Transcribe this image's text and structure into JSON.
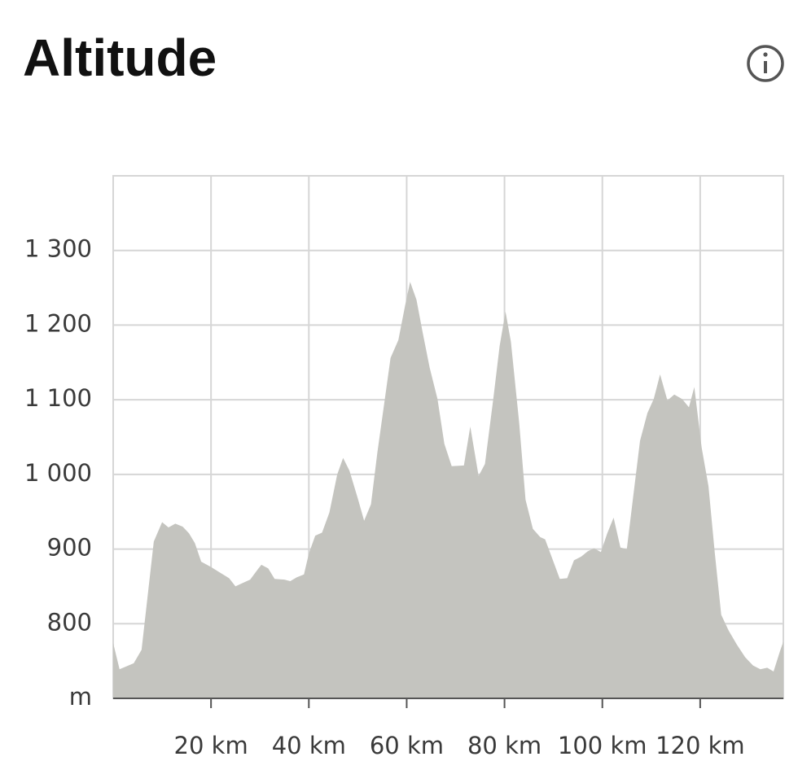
{
  "chart_data": {
    "type": "area",
    "title": "Altitude",
    "color": "#c4c4bf",
    "grid": true,
    "xlim": [
      0,
      137
    ],
    "ylim": [
      700,
      1400
    ],
    "xticks": [
      {
        "value": 20,
        "label": "20 km"
      },
      {
        "value": 40,
        "label": "40 km"
      },
      {
        "value": 60,
        "label": "60 km"
      },
      {
        "value": 80,
        "label": "80 km"
      },
      {
        "value": 100,
        "label": "100 km"
      },
      {
        "value": 120,
        "label": "120 km"
      }
    ],
    "yticks": [
      {
        "value": 700,
        "label": "m"
      },
      800,
      900,
      {
        "value": 1000,
        "label": "1 000"
      },
      {
        "value": 1100,
        "label": "1 100"
      },
      {
        "value": 1200,
        "label": "1 200"
      },
      {
        "value": 1300,
        "label": "1 300"
      }
    ],
    "x": [
      0,
      1.3,
      4.2,
      5.8,
      8.3,
      10,
      11.3,
      12.7,
      14.2,
      15.5,
      16.7,
      18,
      20,
      21.7,
      23.7,
      25,
      26.3,
      28,
      29.7,
      30.3,
      31.7,
      33,
      35,
      36.2,
      37.5,
      39,
      40,
      41.3,
      42.7,
      44.2,
      45.8,
      47,
      48.3,
      50,
      51.3,
      52.7,
      54,
      55.3,
      56.7,
      58.3,
      59.7,
      60.7,
      62,
      63.3,
      64.7,
      66.3,
      67.7,
      69.2,
      71.7,
      73,
      74.7,
      76,
      77.7,
      79,
      80.2,
      81.3,
      83,
      84.3,
      85.8,
      87.3,
      88.3,
      90,
      91.3,
      92.8,
      94.2,
      95.7,
      97,
      98.3,
      99.7,
      101,
      102.3,
      103.7,
      105,
      106.3,
      107.7,
      109.2,
      110.5,
      111.8,
      113.3,
      114.7,
      116.3,
      117.7,
      118.8,
      120.3,
      121.7,
      123,
      124.3,
      125.8,
      127.5,
      129.2,
      130.8,
      132.3,
      133.7,
      135,
      136.3,
      137
    ],
    "values": [
      774,
      739,
      747,
      765,
      910,
      936,
      929,
      934,
      930,
      921,
      908,
      883,
      876,
      869,
      861,
      850,
      854,
      859,
      874,
      879,
      874,
      860,
      859,
      857,
      862,
      866,
      894,
      918,
      922,
      949,
      1000,
      1022,
      1005,
      968,
      938,
      960,
      1029,
      1090,
      1156,
      1180,
      1227,
      1258,
      1234,
      1189,
      1143,
      1101,
      1041,
      1011,
      1012,
      1064,
      998,
      1014,
      1101,
      1172,
      1218,
      1178,
      1069,
      966,
      927,
      916,
      913,
      883,
      860,
      861,
      885,
      890,
      897,
      901,
      896,
      921,
      942,
      902,
      900,
      970,
      1045,
      1082,
      1101,
      1134,
      1099,
      1107,
      1101,
      1090,
      1117,
      1036,
      984,
      894,
      812,
      791,
      772,
      755,
      744,
      739,
      741,
      736,
      763,
      776
    ]
  }
}
